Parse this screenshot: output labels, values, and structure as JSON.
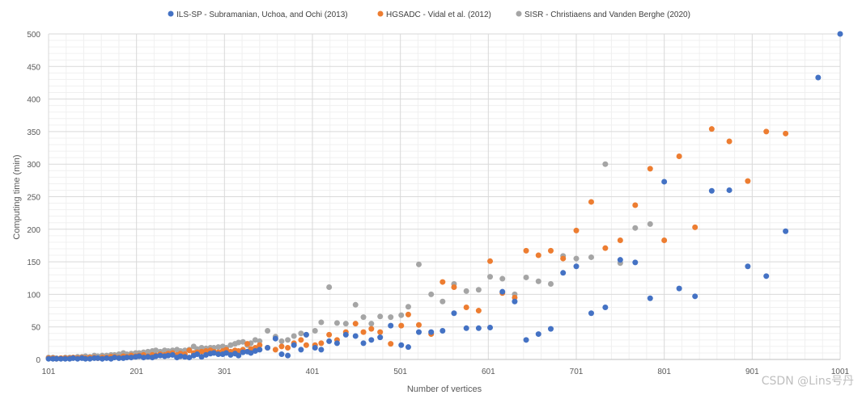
{
  "chart_data": {
    "type": "scatter",
    "title": "",
    "xlabel": "Number of vertices",
    "ylabel": "Computing time (min)",
    "xlim": [
      101,
      1001
    ],
    "ylim": [
      0,
      500
    ],
    "xticks": [
      101,
      201,
      301,
      401,
      501,
      601,
      701,
      801,
      901,
      1001
    ],
    "yticks": [
      0,
      50,
      100,
      150,
      200,
      250,
      300,
      350,
      400,
      450,
      500
    ],
    "grid": true,
    "legend_position": "top",
    "series": [
      {
        "name": "ILS-SP - Subramanian, Uchoa, and Ochi (2013)",
        "color": "#4472C4",
        "points": [
          [
            101,
            1
          ],
          [
            106,
            1
          ],
          [
            110,
            1
          ],
          [
            115,
            1
          ],
          [
            120,
            1
          ],
          [
            125,
            1
          ],
          [
            129,
            2
          ],
          [
            134,
            1
          ],
          [
            139,
            2
          ],
          [
            143,
            1
          ],
          [
            148,
            1
          ],
          [
            153,
            2
          ],
          [
            157,
            2
          ],
          [
            162,
            1
          ],
          [
            167,
            2
          ],
          [
            172,
            1
          ],
          [
            176,
            3
          ],
          [
            181,
            2
          ],
          [
            186,
            2
          ],
          [
            190,
            3
          ],
          [
            195,
            3
          ],
          [
            200,
            4
          ],
          [
            204,
            5
          ],
          [
            209,
            3
          ],
          [
            214,
            4
          ],
          [
            219,
            3
          ],
          [
            223,
            5
          ],
          [
            228,
            6
          ],
          [
            233,
            5
          ],
          [
            237,
            6
          ],
          [
            242,
            7
          ],
          [
            247,
            3
          ],
          [
            251,
            5
          ],
          [
            256,
            4
          ],
          [
            261,
            3
          ],
          [
            266,
            6
          ],
          [
            270,
            8
          ],
          [
            275,
            4
          ],
          [
            280,
            7
          ],
          [
            285,
            9
          ],
          [
            289,
            10
          ],
          [
            294,
            8
          ],
          [
            299,
            8
          ],
          [
            303,
            10
          ],
          [
            308,
            7
          ],
          [
            313,
            9
          ],
          [
            317,
            6
          ],
          [
            322,
            11
          ],
          [
            327,
            12
          ],
          [
            331,
            10
          ],
          [
            336,
            13
          ],
          [
            341,
            15
          ],
          [
            350,
            18
          ],
          [
            359,
            32
          ],
          [
            366,
            8
          ],
          [
            373,
            6
          ],
          [
            380,
            22
          ],
          [
            388,
            15
          ],
          [
            394,
            38
          ],
          [
            404,
            18
          ],
          [
            411,
            15
          ],
          [
            420,
            28
          ],
          [
            429,
            25
          ],
          [
            439,
            38
          ],
          [
            450,
            36
          ],
          [
            459,
            25
          ],
          [
            468,
            30
          ],
          [
            478,
            34
          ],
          [
            490,
            52
          ],
          [
            502,
            22
          ],
          [
            510,
            19
          ],
          [
            522,
            42
          ],
          [
            536,
            42
          ],
          [
            549,
            44
          ],
          [
            562,
            71
          ],
          [
            576,
            48
          ],
          [
            590,
            48
          ],
          [
            603,
            49
          ],
          [
            617,
            104
          ],
          [
            631,
            89
          ],
          [
            644,
            30
          ],
          [
            658,
            39
          ],
          [
            672,
            47
          ],
          [
            686,
            133
          ],
          [
            701,
            143
          ],
          [
            718,
            71
          ],
          [
            734,
            80
          ],
          [
            751,
            153
          ],
          [
            768,
            149
          ],
          [
            785,
            94
          ],
          [
            801,
            273
          ],
          [
            818,
            109
          ],
          [
            836,
            97
          ],
          [
            855,
            259
          ],
          [
            875,
            260
          ],
          [
            896,
            143
          ],
          [
            917,
            128
          ],
          [
            939,
            197
          ],
          [
            976,
            433
          ],
          [
            1001,
            500
          ]
        ]
      },
      {
        "name": "HGSADC - Vidal et al. (2012)",
        "color": "#ED7D31",
        "points": [
          [
            101,
            2
          ],
          [
            106,
            2
          ],
          [
            110,
            1
          ],
          [
            115,
            2
          ],
          [
            120,
            2
          ],
          [
            125,
            2
          ],
          [
            129,
            3
          ],
          [
            134,
            2
          ],
          [
            139,
            3
          ],
          [
            143,
            2
          ],
          [
            148,
            3
          ],
          [
            153,
            3
          ],
          [
            157,
            2
          ],
          [
            162,
            3
          ],
          [
            167,
            3
          ],
          [
            172,
            4
          ],
          [
            176,
            4
          ],
          [
            181,
            3
          ],
          [
            186,
            5
          ],
          [
            190,
            4
          ],
          [
            195,
            6
          ],
          [
            200,
            5
          ],
          [
            204,
            6
          ],
          [
            209,
            7
          ],
          [
            214,
            5
          ],
          [
            219,
            7
          ],
          [
            223,
            6
          ],
          [
            228,
            8
          ],
          [
            233,
            7
          ],
          [
            237,
            9
          ],
          [
            242,
            10
          ],
          [
            247,
            7
          ],
          [
            251,
            9
          ],
          [
            256,
            8
          ],
          [
            261,
            14
          ],
          [
            266,
            10
          ],
          [
            270,
            11
          ],
          [
            275,
            12
          ],
          [
            280,
            13
          ],
          [
            285,
            14
          ],
          [
            289,
            12
          ],
          [
            294,
            11
          ],
          [
            299,
            13
          ],
          [
            303,
            15
          ],
          [
            308,
            12
          ],
          [
            313,
            14
          ],
          [
            317,
            13
          ],
          [
            322,
            15
          ],
          [
            327,
            24
          ],
          [
            331,
            16
          ],
          [
            336,
            18
          ],
          [
            341,
            22
          ],
          [
            350,
            18
          ],
          [
            359,
            15
          ],
          [
            366,
            20
          ],
          [
            373,
            18
          ],
          [
            380,
            25
          ],
          [
            388,
            30
          ],
          [
            394,
            22
          ],
          [
            404,
            22
          ],
          [
            411,
            25
          ],
          [
            420,
            38
          ],
          [
            429,
            30
          ],
          [
            439,
            42
          ],
          [
            450,
            55
          ],
          [
            459,
            42
          ],
          [
            468,
            47
          ],
          [
            478,
            42
          ],
          [
            490,
            24
          ],
          [
            502,
            52
          ],
          [
            510,
            69
          ],
          [
            522,
            53
          ],
          [
            536,
            39
          ],
          [
            549,
            119
          ],
          [
            562,
            111
          ],
          [
            576,
            80
          ],
          [
            590,
            75
          ],
          [
            603,
            151
          ],
          [
            617,
            102
          ],
          [
            631,
            95
          ],
          [
            644,
            167
          ],
          [
            658,
            160
          ],
          [
            672,
            167
          ],
          [
            686,
            155
          ],
          [
            701,
            198
          ],
          [
            718,
            242
          ],
          [
            734,
            171
          ],
          [
            751,
            183
          ],
          [
            768,
            237
          ],
          [
            785,
            293
          ],
          [
            801,
            183
          ],
          [
            818,
            312
          ],
          [
            836,
            203
          ],
          [
            855,
            354
          ],
          [
            875,
            335
          ],
          [
            896,
            274
          ],
          [
            917,
            350
          ],
          [
            939,
            347
          ]
        ]
      },
      {
        "name": "SISR - Christiaens and Vanden Berghe (2020)",
        "color": "#A5A5A5",
        "points": [
          [
            101,
            3
          ],
          [
            106,
            3
          ],
          [
            110,
            2
          ],
          [
            115,
            2
          ],
          [
            120,
            3
          ],
          [
            125,
            3
          ],
          [
            129,
            3
          ],
          [
            134,
            4
          ],
          [
            139,
            4
          ],
          [
            143,
            5
          ],
          [
            148,
            4
          ],
          [
            153,
            6
          ],
          [
            157,
            5
          ],
          [
            162,
            6
          ],
          [
            167,
            6
          ],
          [
            172,
            7
          ],
          [
            176,
            7
          ],
          [
            181,
            8
          ],
          [
            186,
            10
          ],
          [
            190,
            8
          ],
          [
            195,
            9
          ],
          [
            200,
            10
          ],
          [
            204,
            10
          ],
          [
            209,
            11
          ],
          [
            214,
            12
          ],
          [
            219,
            13
          ],
          [
            223,
            14
          ],
          [
            228,
            12
          ],
          [
            233,
            14
          ],
          [
            237,
            13
          ],
          [
            242,
            14
          ],
          [
            247,
            15
          ],
          [
            251,
            13
          ],
          [
            256,
            14
          ],
          [
            261,
            15
          ],
          [
            266,
            20
          ],
          [
            270,
            16
          ],
          [
            275,
            18
          ],
          [
            280,
            17
          ],
          [
            285,
            18
          ],
          [
            289,
            18
          ],
          [
            294,
            19
          ],
          [
            299,
            20
          ],
          [
            303,
            18
          ],
          [
            308,
            22
          ],
          [
            313,
            24
          ],
          [
            317,
            26
          ],
          [
            322,
            27
          ],
          [
            327,
            22
          ],
          [
            331,
            25
          ],
          [
            336,
            30
          ],
          [
            341,
            28
          ],
          [
            350,
            44
          ],
          [
            359,
            35
          ],
          [
            366,
            28
          ],
          [
            373,
            30
          ],
          [
            380,
            36
          ],
          [
            388,
            40
          ],
          [
            394,
            38
          ],
          [
            404,
            44
          ],
          [
            411,
            57
          ],
          [
            420,
            111
          ],
          [
            429,
            56
          ],
          [
            439,
            55
          ],
          [
            450,
            84
          ],
          [
            459,
            65
          ],
          [
            468,
            55
          ],
          [
            478,
            66
          ],
          [
            490,
            65
          ],
          [
            502,
            68
          ],
          [
            510,
            81
          ],
          [
            522,
            146
          ],
          [
            536,
            100
          ],
          [
            549,
            89
          ],
          [
            562,
            116
          ],
          [
            576,
            105
          ],
          [
            590,
            107
          ],
          [
            603,
            127
          ],
          [
            617,
            124
          ],
          [
            631,
            100
          ],
          [
            644,
            126
          ],
          [
            658,
            120
          ],
          [
            672,
            116
          ],
          [
            686,
            159
          ],
          [
            701,
            155
          ],
          [
            718,
            157
          ],
          [
            734,
            300
          ],
          [
            751,
            148
          ],
          [
            768,
            202
          ],
          [
            785,
            208
          ]
        ]
      }
    ]
  },
  "watermark": "CSDN @Lins号丹"
}
